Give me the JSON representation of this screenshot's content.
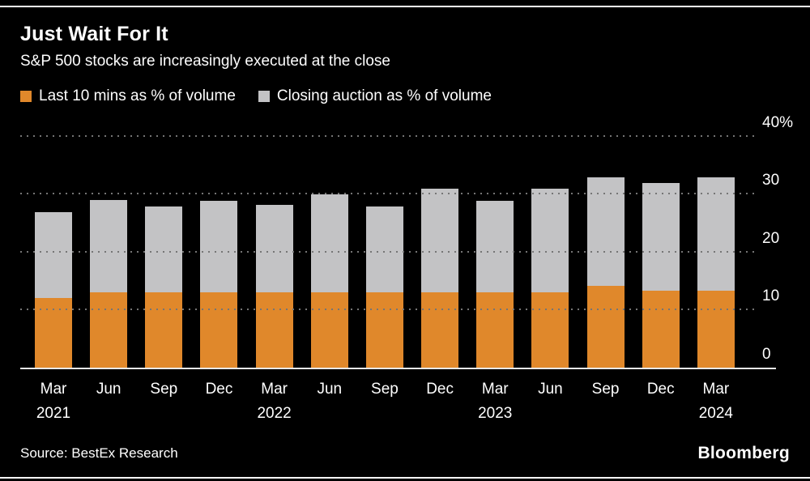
{
  "header": {
    "title": "Just Wait For It",
    "subtitle": "S&P 500 stocks are increasingly executed at the close"
  },
  "legend": [
    {
      "label": "Last 10 mins as % of volume",
      "color": "#E0882B"
    },
    {
      "label": "Closing auction as % of volume",
      "color": "#C3C3C5"
    }
  ],
  "chart_data": {
    "type": "bar",
    "stacked": true,
    "title": "Just Wait For It",
    "subtitle": "S&P 500 stocks are increasingly executed at the close",
    "categories": [
      "Mar 2021",
      "Jun 2021",
      "Sep 2021",
      "Dec 2021",
      "Mar 2022",
      "Jun 2022",
      "Sep 2022",
      "Dec 2022",
      "Mar 2023",
      "Jun 2023",
      "Sep 2023",
      "Dec 2023",
      "Mar 2024"
    ],
    "x_tick_labels": [
      {
        "month": "Mar",
        "year": "2021"
      },
      {
        "month": "Jun",
        "year": ""
      },
      {
        "month": "Sep",
        "year": ""
      },
      {
        "month": "Dec",
        "year": ""
      },
      {
        "month": "Mar",
        "year": "2022"
      },
      {
        "month": "Jun",
        "year": ""
      },
      {
        "month": "Sep",
        "year": ""
      },
      {
        "month": "Dec",
        "year": ""
      },
      {
        "month": "Mar",
        "year": "2023"
      },
      {
        "month": "Jun",
        "year": ""
      },
      {
        "month": "Sep",
        "year": ""
      },
      {
        "month": "Dec",
        "year": ""
      },
      {
        "month": "Mar",
        "year": "2024"
      }
    ],
    "series": [
      {
        "name": "Last 10 mins as % of volume",
        "color": "#E0882B",
        "values": [
          12.1,
          13.2,
          13.1,
          13.2,
          13.2,
          13.2,
          13.1,
          13.2,
          13.2,
          13.2,
          14.2,
          13.4,
          13.4
        ]
      },
      {
        "name": "Closing auction as % of volume",
        "color": "#C3C3C5",
        "values": [
          14.8,
          15.8,
          14.9,
          15.7,
          15.0,
          16.8,
          14.8,
          17.8,
          15.7,
          17.8,
          18.8,
          18.6,
          19.6
        ]
      }
    ],
    "ylim": [
      0,
      44
    ],
    "y_ticks": [
      {
        "value": 0,
        "label": "0"
      },
      {
        "value": 10,
        "label": "10"
      },
      {
        "value": 20,
        "label": "20"
      },
      {
        "value": 30,
        "label": "30"
      },
      {
        "value": 40,
        "label": "40%"
      }
    ],
    "grid": "horizontal-dotted",
    "legend_position": "top-left",
    "ylabel": "",
    "xlabel": ""
  },
  "colors": {
    "background": "#000000",
    "bar_orange": "#E0882B",
    "bar_gray": "#C3C3C5",
    "grid": "#757575",
    "axis": "#E8E8E8",
    "text": "#FFFFFF"
  },
  "footer": {
    "source": "Source: BestEx Research",
    "logo": "Bloomberg"
  }
}
